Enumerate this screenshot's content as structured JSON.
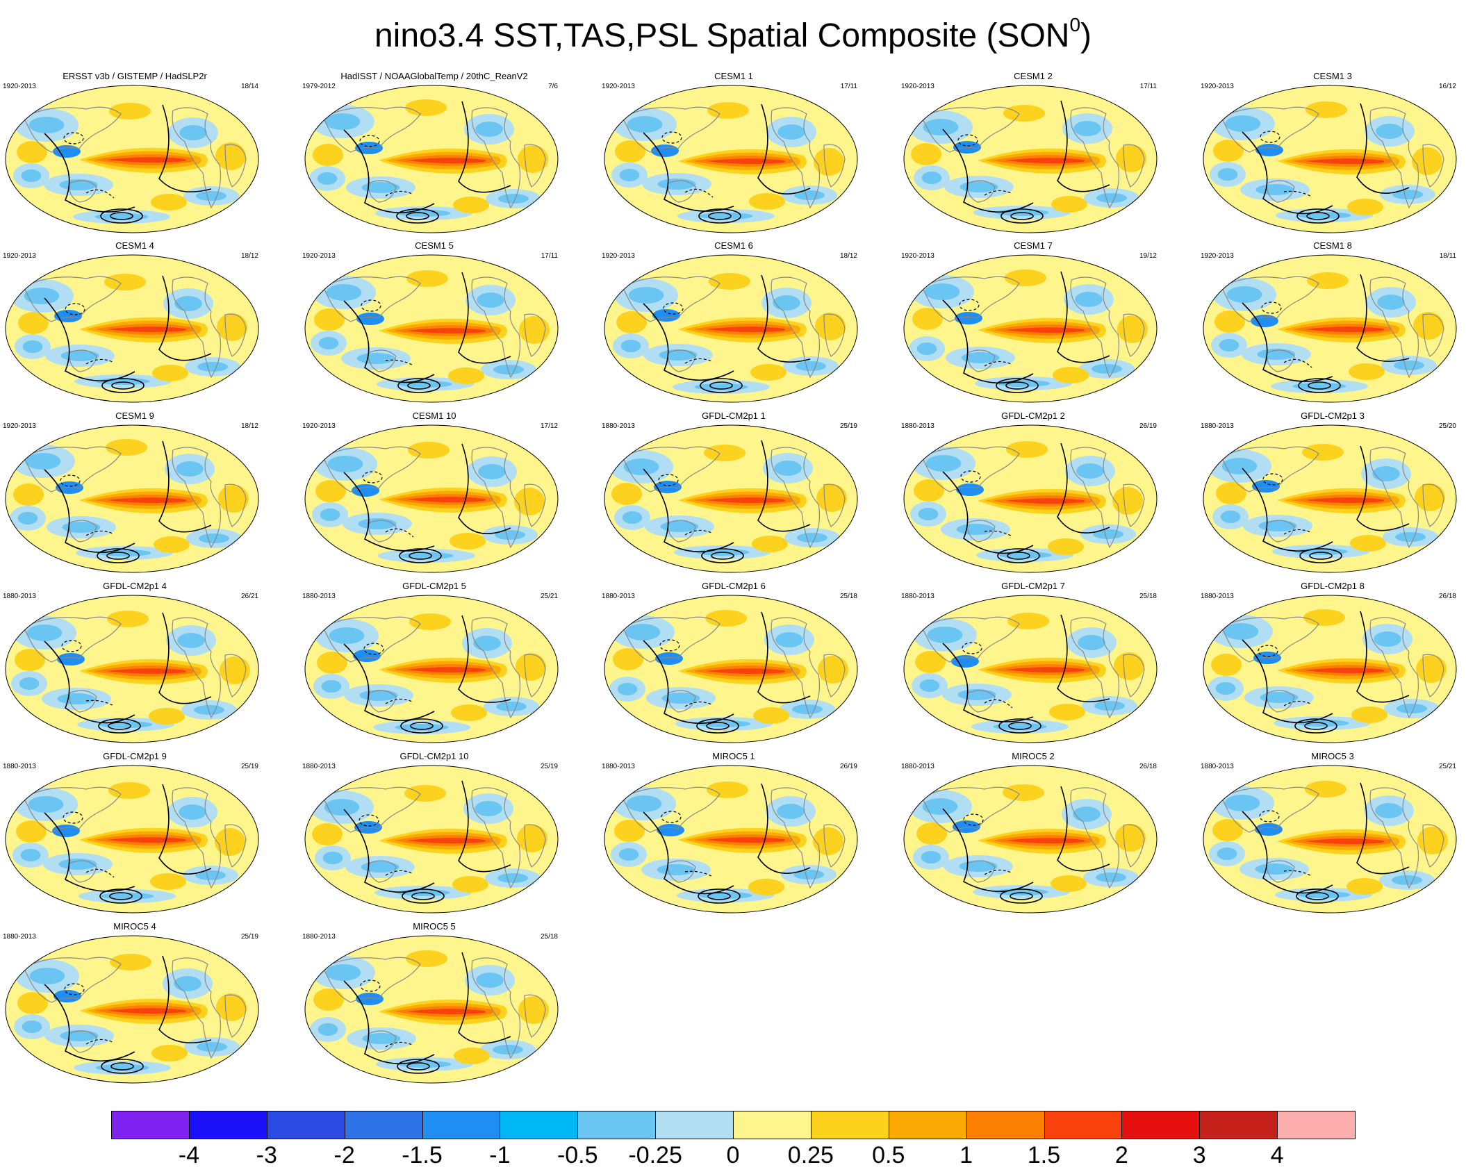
{
  "title": {
    "main": "nino3.4 SST,TAS,PSL Spatial Composite (SON",
    "superscript": "0",
    "close": ")"
  },
  "panels": [
    {
      "title": "ERSST v3b / GISTEMP / HadSLP2r",
      "years": "1920-2013",
      "count": "18/14"
    },
    {
      "title": "HadISST / NOAAGlobalTemp / 20thC_ReanV2",
      "years": "1979-2012",
      "count": "7/6"
    },
    {
      "title": "CESM1 1",
      "years": "1920-2013",
      "count": "17/11"
    },
    {
      "title": "CESM1 2",
      "years": "1920-2013",
      "count": "17/11"
    },
    {
      "title": "CESM1 3",
      "years": "1920-2013",
      "count": "16/12"
    },
    {
      "title": "CESM1 4",
      "years": "1920-2013",
      "count": "18/12"
    },
    {
      "title": "CESM1 5",
      "years": "1920-2013",
      "count": "17/11"
    },
    {
      "title": "CESM1 6",
      "years": "1920-2013",
      "count": "18/12"
    },
    {
      "title": "CESM1 7",
      "years": "1920-2013",
      "count": "19/12"
    },
    {
      "title": "CESM1 8",
      "years": "1920-2013",
      "count": "18/11"
    },
    {
      "title": "CESM1 9",
      "years": "1920-2013",
      "count": "18/12"
    },
    {
      "title": "CESM1 10",
      "years": "1920-2013",
      "count": "17/12"
    },
    {
      "title": "GFDL-CM2p1 1",
      "years": "1880-2013",
      "count": "25/19"
    },
    {
      "title": "GFDL-CM2p1 2",
      "years": "1880-2013",
      "count": "26/19"
    },
    {
      "title": "GFDL-CM2p1 3",
      "years": "1880-2013",
      "count": "25/20"
    },
    {
      "title": "GFDL-CM2p1 4",
      "years": "1880-2013",
      "count": "26/21"
    },
    {
      "title": "GFDL-CM2p1 5",
      "years": "1880-2013",
      "count": "25/21"
    },
    {
      "title": "GFDL-CM2p1 6",
      "years": "1880-2013",
      "count": "25/18"
    },
    {
      "title": "GFDL-CM2p1 7",
      "years": "1880-2013",
      "count": "25/18"
    },
    {
      "title": "GFDL-CM2p1 8",
      "years": "1880-2013",
      "count": "26/18"
    },
    {
      "title": "GFDL-CM2p1 9",
      "years": "1880-2013",
      "count": "25/19"
    },
    {
      "title": "GFDL-CM2p1 10",
      "years": "1880-2013",
      "count": "25/19"
    },
    {
      "title": "MIROC5 1",
      "years": "1880-2013",
      "count": "26/19"
    },
    {
      "title": "MIROC5 2",
      "years": "1880-2013",
      "count": "26/18"
    },
    {
      "title": "MIROC5 3",
      "years": "1880-2013",
      "count": "25/21"
    },
    {
      "title": "MIROC5 4",
      "years": "1880-2013",
      "count": "25/19"
    },
    {
      "title": "MIROC5 5",
      "years": "1880-2013",
      "count": "25/18"
    }
  ],
  "colorbar": {
    "colors": [
      "#7f22f0",
      "#1c10f8",
      "#2c4be4",
      "#2f74e6",
      "#1e8ef2",
      "#00b7f6",
      "#6bc5f2",
      "#b2def4",
      "#fef68c",
      "#fdd21e",
      "#fba904",
      "#fb7f03",
      "#f9410e",
      "#e50f0f",
      "#c7211c",
      "#fdaeae"
    ],
    "labels": [
      "-4",
      "-3",
      "-2",
      "-1.5",
      "-1",
      "-0.5",
      "-0.25",
      "0",
      "0.25",
      "0.5",
      "1",
      "1.5",
      "2",
      "3",
      "4"
    ]
  },
  "map_palette": {
    "ocean_background": "#fef68c",
    "warm_light": "#fdd21e",
    "warm_mid": "#fba904",
    "warm_strong": "#fb7f03",
    "warm_core": "#f9410e",
    "cool_light": "#b2def4",
    "cool_mid": "#6bc5f2",
    "cool_strong": "#1e8ef2",
    "coastline": "#888888",
    "contour": "#000000"
  }
}
